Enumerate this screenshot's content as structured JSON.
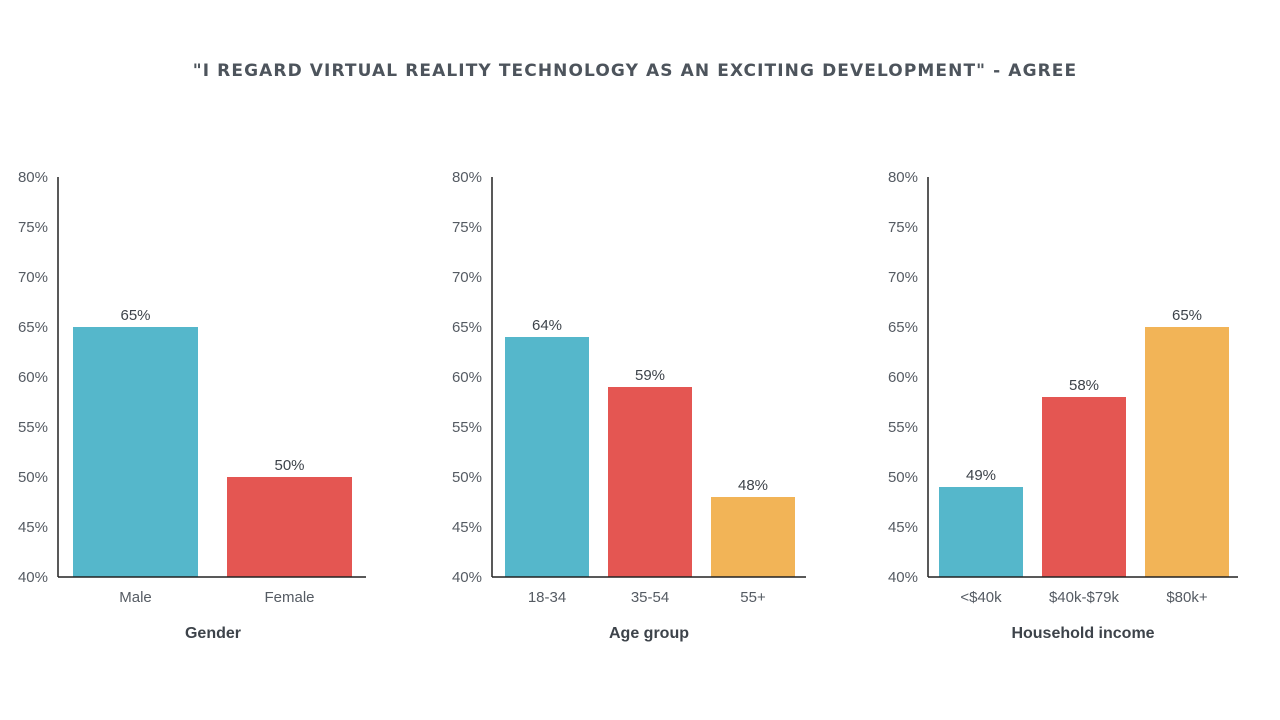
{
  "title": "\"I REGARD VIRTUAL REALITY TECHNOLOGY AS AN EXCITING DEVELOPMENT\" - AGREE",
  "colors": {
    "blue": "#55b7cb",
    "red": "#e45652",
    "yellow": "#f2b457",
    "axis": "#222222"
  },
  "chart_data": [
    {
      "type": "bar",
      "title": "",
      "xlabel": "Gender",
      "ylabel": "",
      "ylim": [
        40,
        80
      ],
      "yticks": [
        40,
        45,
        50,
        55,
        60,
        65,
        70,
        75,
        80
      ],
      "tick_suffix": "%",
      "categories": [
        "Male",
        "Female"
      ],
      "values": [
        65,
        50
      ],
      "value_labels": [
        "65%",
        "50%"
      ],
      "bar_colors": [
        "#55b7cb",
        "#e45652"
      ]
    },
    {
      "type": "bar",
      "title": "",
      "xlabel": "Age group",
      "ylabel": "",
      "ylim": [
        40,
        80
      ],
      "yticks": [
        40,
        45,
        50,
        55,
        60,
        65,
        70,
        75,
        80
      ],
      "tick_suffix": "%",
      "categories": [
        "18-34",
        "35-54",
        "55+"
      ],
      "values": [
        64,
        59,
        48
      ],
      "value_labels": [
        "64%",
        "59%",
        "48%"
      ],
      "bar_colors": [
        "#55b7cb",
        "#e45652",
        "#f2b457"
      ]
    },
    {
      "type": "bar",
      "title": "",
      "xlabel": "Household income",
      "ylabel": "",
      "ylim": [
        40,
        80
      ],
      "yticks": [
        40,
        45,
        50,
        55,
        60,
        65,
        70,
        75,
        80
      ],
      "tick_suffix": "%",
      "categories": [
        "<$40k",
        "$40k-$79k",
        "$80k+"
      ],
      "values": [
        49,
        58,
        65
      ],
      "value_labels": [
        "49%",
        "58%",
        "65%"
      ],
      "bar_colors": [
        "#55b7cb",
        "#e45652",
        "#f2b457"
      ]
    }
  ]
}
